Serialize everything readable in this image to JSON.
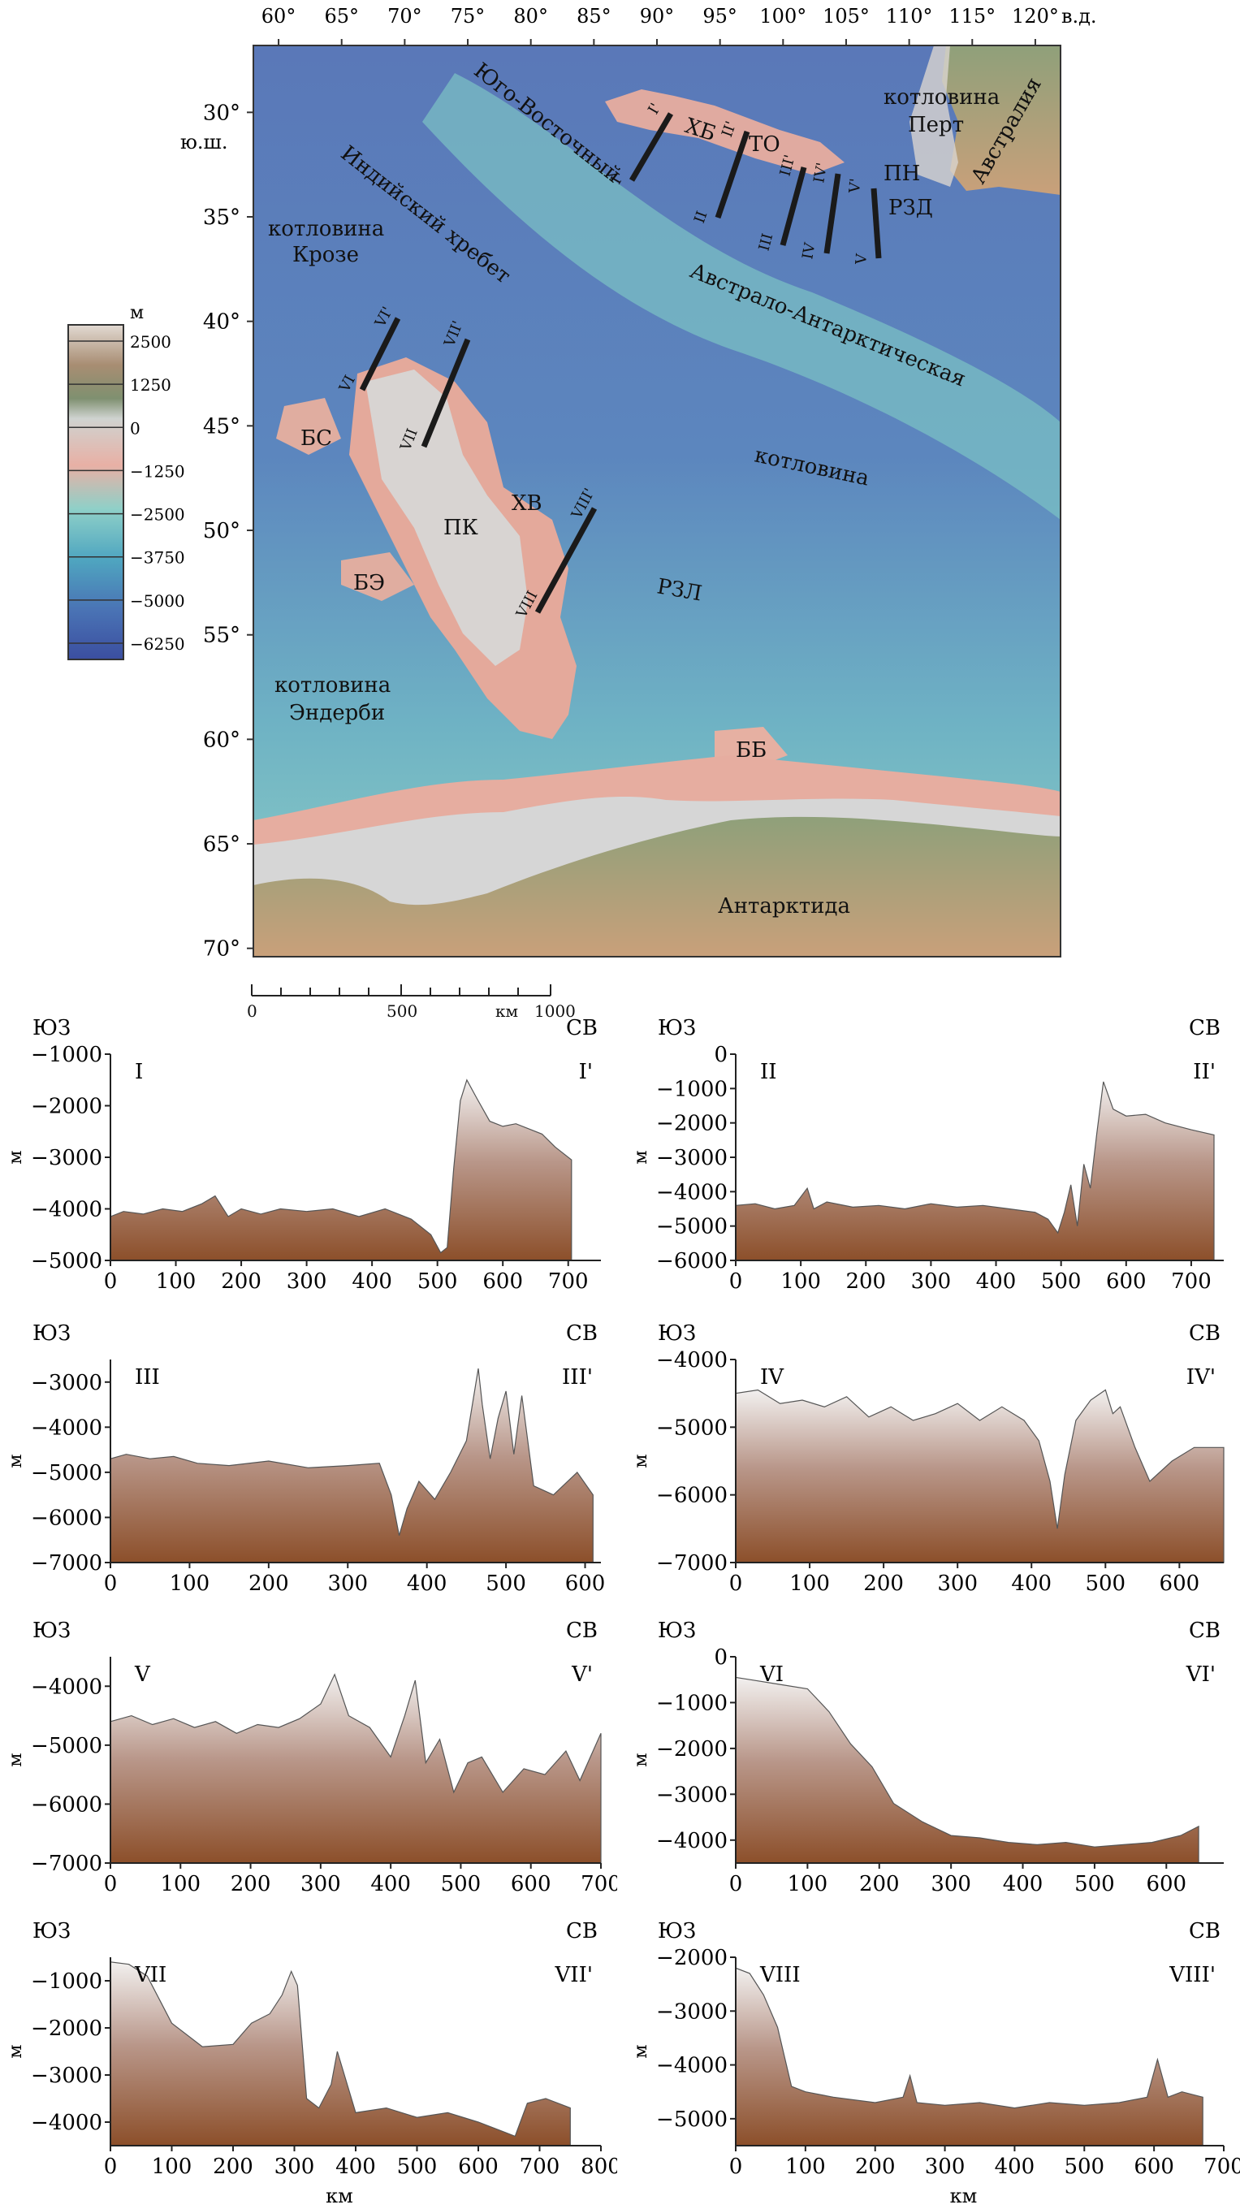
{
  "map": {
    "lon_labels": [
      "60°",
      "65°",
      "70°",
      "75°",
      "80°",
      "85°",
      "90°",
      "95°",
      "100°",
      "105°",
      "110°",
      "115°",
      "120°"
    ],
    "lon_values": [
      60,
      65,
      70,
      75,
      80,
      85,
      90,
      95,
      100,
      105,
      110,
      115,
      120
    ],
    "lon_suffix": "в.д.",
    "lat_labels": [
      "30°",
      "35°",
      "40°",
      "45°",
      "50°",
      "55°",
      "60°",
      "65°",
      "70°"
    ],
    "lat_values": [
      30,
      35,
      40,
      45,
      50,
      55,
      60,
      65,
      70
    ],
    "lat_suffix": "ю.ш.",
    "labels": {
      "basin_perth_1": "котловина",
      "basin_perth_2": "Перт",
      "australia": "Австралия",
      "se_ridge_1": "Юго-Восточный",
      "indian_ridge": "Индийский хребет",
      "crozet_1": "котловина",
      "crozet_2": "Крозе",
      "aa_basin_1": "Австрало-Антарктическая",
      "aa_basin_2": "котловина",
      "enderby_1": "котловина",
      "enderby_2": "Эндерби",
      "antarctica": "Антарктида",
      "hb": "ХБ",
      "to": "ТО",
      "pn": "ПН",
      "rzd": "РЗД",
      "bs": "БС",
      "hv": "ХВ",
      "pk": "ПК",
      "be": "БЭ",
      "rzl": "РЗЛ",
      "bb": "ББ"
    },
    "profile_lines": [
      {
        "start": "I",
        "end": "I'"
      },
      {
        "start": "II",
        "end": "II'"
      },
      {
        "start": "III",
        "end": "III'"
      },
      {
        "start": "IV",
        "end": "IV'"
      },
      {
        "start": "V",
        "end": "V'"
      },
      {
        "start": "VI",
        "end": "VI'"
      },
      {
        "start": "VII",
        "end": "VII'"
      },
      {
        "start": "VIII",
        "end": "VIII'"
      }
    ]
  },
  "legend": {
    "unit": "м",
    "ticks": [
      "2500",
      "1250",
      "0",
      "−1250",
      "−2500",
      "−3750",
      "−5000",
      "−6250"
    ],
    "colors": [
      "#d9d2cb",
      "#b08f72",
      "#7e8f6a",
      "#c8ccc8",
      "#e6ada3",
      "#76c0bd",
      "#4f8fb8",
      "#3f5fa6"
    ]
  },
  "scale_bar": {
    "labels": [
      "0",
      "500",
      "км",
      "1000"
    ]
  },
  "chart_data": [
    {
      "type": "area",
      "start_label": "I",
      "end_label": "I'",
      "left_dir": "ЮЗ",
      "right_dir": "СВ",
      "ylabel": "м",
      "xlabel": "",
      "ylim": [
        -5000,
        -1000
      ],
      "yticks": [
        -1000,
        -2000,
        -3000,
        -4000,
        -5000
      ],
      "xlim": [
        0,
        750
      ],
      "xticks": [
        0,
        100,
        200,
        300,
        400,
        500,
        600,
        700
      ],
      "x": [
        0,
        20,
        50,
        80,
        110,
        140,
        160,
        180,
        200,
        230,
        260,
        300,
        340,
        380,
        420,
        460,
        490,
        505,
        515,
        525,
        535,
        545,
        560,
        580,
        600,
        620,
        640,
        660,
        680,
        705
      ],
      "y": [
        -4150,
        -4050,
        -4100,
        -4000,
        -4050,
        -3900,
        -3750,
        -4150,
        -4000,
        -4100,
        -4000,
        -4050,
        -4000,
        -4150,
        -4000,
        -4200,
        -4500,
        -4850,
        -4750,
        -3200,
        -1900,
        -1500,
        -1850,
        -2300,
        -2400,
        -2350,
        -2450,
        -2550,
        -2800,
        -3050
      ]
    },
    {
      "type": "area",
      "start_label": "II",
      "end_label": "II'",
      "left_dir": "ЮЗ",
      "right_dir": "СВ",
      "ylabel": "м",
      "xlabel": "",
      "ylim": [
        -6000,
        0
      ],
      "yticks": [
        0,
        -1000,
        -2000,
        -3000,
        -4000,
        -5000,
        -6000
      ],
      "xlim": [
        0,
        750
      ],
      "xticks": [
        0,
        100,
        200,
        300,
        400,
        500,
        600,
        700
      ],
      "x": [
        0,
        30,
        60,
        90,
        110,
        120,
        140,
        180,
        220,
        260,
        300,
        340,
        380,
        420,
        460,
        480,
        495,
        505,
        515,
        525,
        535,
        545,
        555,
        565,
        580,
        600,
        630,
        660,
        700,
        735
      ],
      "y": [
        -4400,
        -4350,
        -4500,
        -4400,
        -3900,
        -4500,
        -4300,
        -4450,
        -4400,
        -4500,
        -4350,
        -4450,
        -4400,
        -4500,
        -4600,
        -4800,
        -5200,
        -4600,
        -3800,
        -5000,
        -3200,
        -3900,
        -2300,
        -800,
        -1600,
        -1800,
        -1750,
        -2000,
        -2200,
        -2350
      ]
    },
    {
      "type": "area",
      "start_label": "III",
      "end_label": "III'",
      "left_dir": "ЮЗ",
      "right_dir": "СВ",
      "ylabel": "м",
      "xlabel": "",
      "ylim": [
        -7000,
        -2500
      ],
      "yticks": [
        -3000,
        -4000,
        -5000,
        -6000,
        -7000
      ],
      "xlim": [
        0,
        620
      ],
      "xticks": [
        0,
        100,
        200,
        300,
        400,
        500,
        600
      ],
      "x": [
        0,
        20,
        50,
        80,
        110,
        150,
        200,
        250,
        300,
        340,
        355,
        365,
        375,
        390,
        410,
        430,
        450,
        465,
        470,
        480,
        490,
        500,
        510,
        520,
        535,
        560,
        590,
        610
      ],
      "y": [
        -4700,
        -4600,
        -4700,
        -4650,
        -4800,
        -4850,
        -4750,
        -4900,
        -4850,
        -4800,
        -5500,
        -6400,
        -5800,
        -5200,
        -5600,
        -5000,
        -4300,
        -2700,
        -3500,
        -4700,
        -3800,
        -3200,
        -4600,
        -3300,
        -5300,
        -5500,
        -5000,
        -5500
      ]
    },
    {
      "type": "area",
      "start_label": "IV",
      "end_label": "IV'",
      "left_dir": "ЮЗ",
      "right_dir": "СВ",
      "ylabel": "м",
      "xlabel": "",
      "ylim": [
        -7000,
        -4000
      ],
      "yticks": [
        -4000,
        -5000,
        -6000,
        -7000
      ],
      "xlim": [
        0,
        660
      ],
      "xticks": [
        0,
        100,
        200,
        300,
        400,
        500,
        600
      ],
      "x": [
        0,
        30,
        60,
        90,
        120,
        150,
        180,
        210,
        240,
        270,
        300,
        330,
        360,
        390,
        410,
        425,
        435,
        445,
        460,
        480,
        500,
        510,
        520,
        540,
        560,
        590,
        620,
        660
      ],
      "y": [
        -4500,
        -4450,
        -4650,
        -4600,
        -4700,
        -4550,
        -4850,
        -4700,
        -4900,
        -4800,
        -4650,
        -4900,
        -4700,
        -4900,
        -5200,
        -5800,
        -6500,
        -5700,
        -4900,
        -4600,
        -4450,
        -4800,
        -4700,
        -5300,
        -5800,
        -5500,
        -5300,
        -5300
      ]
    },
    {
      "type": "area",
      "start_label": "V",
      "end_label": "V'",
      "left_dir": "ЮЗ",
      "right_dir": "СВ",
      "ylabel": "м",
      "xlabel": "",
      "ylim": [
        -7000,
        -3500
      ],
      "yticks": [
        -4000,
        -5000,
        -6000,
        -7000
      ],
      "xlim": [
        0,
        700
      ],
      "xticks": [
        0,
        100,
        200,
        300,
        400,
        500,
        600,
        700
      ],
      "x": [
        0,
        30,
        60,
        90,
        120,
        150,
        180,
        210,
        240,
        270,
        300,
        320,
        340,
        370,
        400,
        420,
        435,
        450,
        470,
        490,
        510,
        530,
        560,
        590,
        620,
        650,
        670,
        700
      ],
      "y": [
        -4600,
        -4500,
        -4650,
        -4550,
        -4700,
        -4600,
        -4800,
        -4650,
        -4700,
        -4550,
        -4300,
        -3800,
        -4500,
        -4700,
        -5200,
        -4500,
        -3900,
        -5300,
        -4900,
        -5800,
        -5300,
        -5200,
        -5800,
        -5400,
        -5500,
        -5100,
        -5600,
        -4800
      ]
    },
    {
      "type": "area",
      "start_label": "VI",
      "end_label": "VI'",
      "left_dir": "ЮЗ",
      "right_dir": "СВ",
      "ylabel": "м",
      "xlabel": "",
      "ylim": [
        -4500,
        0
      ],
      "yticks": [
        0,
        -1000,
        -2000,
        -3000,
        -4000
      ],
      "xlim": [
        0,
        680
      ],
      "xticks": [
        0,
        100,
        200,
        300,
        400,
        500,
        600
      ],
      "x": [
        0,
        20,
        60,
        100,
        130,
        160,
        190,
        220,
        260,
        300,
        340,
        380,
        420,
        460,
        500,
        540,
        580,
        620,
        645
      ],
      "y": [
        -450,
        -500,
        -600,
        -700,
        -1200,
        -1900,
        -2400,
        -3200,
        -3600,
        -3900,
        -3950,
        -4050,
        -4100,
        -4050,
        -4150,
        -4100,
        -4050,
        -3900,
        -3700
      ]
    },
    {
      "type": "area",
      "start_label": "VII",
      "end_label": "VII'",
      "left_dir": "ЮЗ",
      "right_dir": "СВ",
      "ylabel": "м",
      "xlabel": "км",
      "ylim": [
        -4500,
        -500
      ],
      "yticks": [
        -1000,
        -2000,
        -3000,
        -4000
      ],
      "xlim": [
        0,
        800
      ],
      "xticks": [
        0,
        100,
        200,
        300,
        400,
        500,
        600,
        700,
        800
      ],
      "x": [
        0,
        30,
        60,
        100,
        150,
        200,
        230,
        260,
        280,
        295,
        305,
        320,
        340,
        360,
        370,
        400,
        450,
        500,
        550,
        600,
        640,
        660,
        680,
        710,
        750
      ],
      "y": [
        -600,
        -650,
        -900,
        -1900,
        -2400,
        -2350,
        -1900,
        -1700,
        -1300,
        -800,
        -1100,
        -3500,
        -3700,
        -3200,
        -2500,
        -3800,
        -3700,
        -3900,
        -3800,
        -4000,
        -4200,
        -4300,
        -3600,
        -3500,
        -3700
      ]
    },
    {
      "type": "area",
      "start_label": "VIII",
      "end_label": "VIII'",
      "left_dir": "ЮЗ",
      "right_dir": "СВ",
      "ylabel": "м",
      "xlabel": "км",
      "ylim": [
        -5500,
        -2000
      ],
      "yticks": [
        -2000,
        -3000,
        -4000,
        -5000
      ],
      "xlim": [
        0,
        700
      ],
      "xticks": [
        0,
        100,
        200,
        300,
        400,
        500,
        600,
        700
      ],
      "x": [
        0,
        20,
        40,
        60,
        80,
        100,
        140,
        200,
        240,
        250,
        260,
        300,
        350,
        400,
        450,
        500,
        550,
        590,
        605,
        620,
        640,
        670
      ],
      "y": [
        -2200,
        -2300,
        -2700,
        -3300,
        -4400,
        -4500,
        -4600,
        -4700,
        -4600,
        -4200,
        -4700,
        -4750,
        -4700,
        -4800,
        -4700,
        -4750,
        -4700,
        -4600,
        -3900,
        -4600,
        -4500,
        -4600
      ]
    }
  ]
}
